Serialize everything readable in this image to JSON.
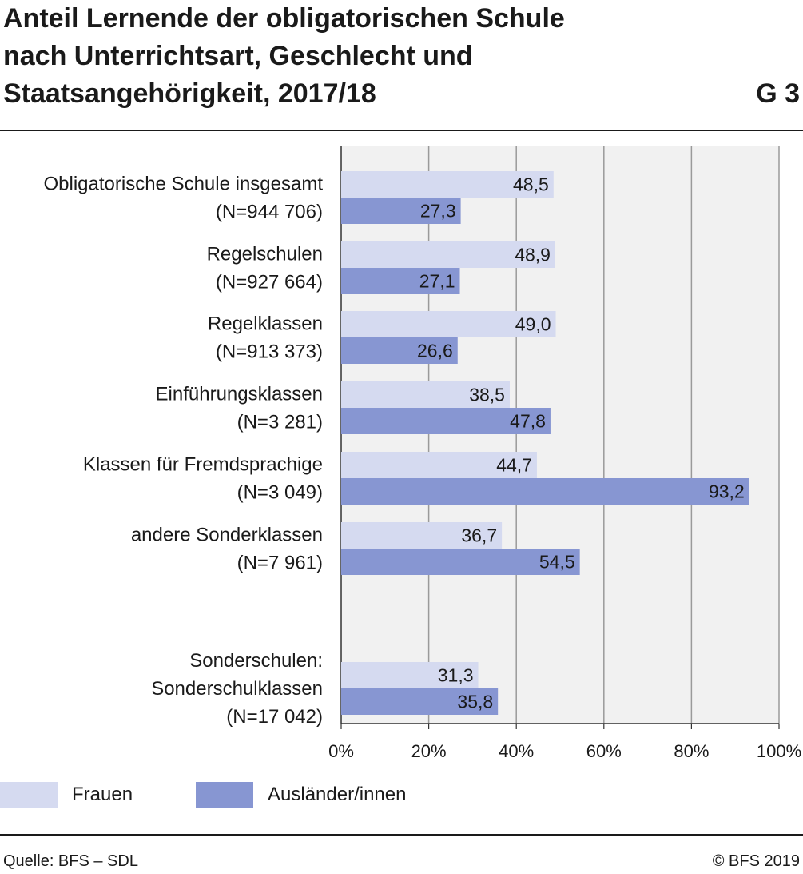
{
  "header": {
    "title_lines": [
      "Anteil Lernende der obligatorischen Schule",
      "nach Unterrichtsart, Geschlecht und",
      "Staatsangehörigkeit, 2017/18"
    ],
    "graphic_number": "G 3"
  },
  "chart_data": {
    "type": "bar",
    "orientation": "horizontal",
    "categories": [
      [
        "Obligatorische Schule insgesamt",
        "(N=944 706)"
      ],
      [
        "Regelschulen",
        "(N=927 664)"
      ],
      [
        "Regelklassen",
        "(N=913 373)"
      ],
      [
        "Einführungsklassen",
        "(N=3 281)"
      ],
      [
        "Klassen für Fremdsprachige",
        "(N=3 049)"
      ],
      [
        "andere Sonderklassen",
        "(N=7 961)"
      ],
      [
        "Sonderschulen:",
        "Sonderschulklassen",
        "(N=17 042)"
      ]
    ],
    "series": [
      {
        "name": "Frauen",
        "color": "#d5daf0",
        "values": [
          48.5,
          48.9,
          49.0,
          38.5,
          44.7,
          36.7,
          31.3
        ],
        "labels": [
          "48,5",
          "48,9",
          "49,0",
          "38,5",
          "44,7",
          "36,7",
          "31,3"
        ]
      },
      {
        "name": "Ausländer/innen",
        "color": "#8796d2",
        "values": [
          27.3,
          27.1,
          26.6,
          47.8,
          93.2,
          54.5,
          35.8
        ],
        "labels": [
          "27,3",
          "27,1",
          "26,6",
          "47,8",
          "93,2",
          "54,5",
          "35,8"
        ]
      }
    ],
    "xlim": [
      0,
      100
    ],
    "xticks": [
      "0%",
      "20%",
      "40%",
      "60%",
      "80%",
      "100%"
    ],
    "grid": true,
    "legend_position": "bottom-left"
  },
  "footer": {
    "source": "Quelle: BFS – SDL",
    "copyright": "© BFS 2019"
  }
}
